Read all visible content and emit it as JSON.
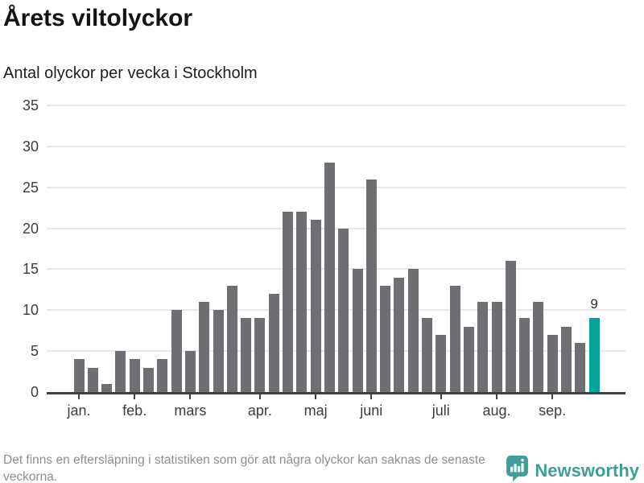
{
  "header": {
    "title": "Årets viltolyckor",
    "subtitle": "Antal olyckor per vecka i Stockholm"
  },
  "footer": {
    "note": "Det finns en eftersläpning i statistiken som gör att några olyckor kan saknas de senaste veckorna.",
    "brand": "Newsworthy"
  },
  "chart_data": {
    "type": "bar",
    "title": "Årets viltolyckor",
    "subtitle": "Antal olyckor per vecka i Stockholm",
    "x_unit": "vecka",
    "values": [
      4,
      3,
      1,
      5,
      4,
      3,
      4,
      10,
      5,
      11,
      10,
      13,
      9,
      9,
      12,
      22,
      22,
      21,
      28,
      20,
      15,
      26,
      13,
      14,
      15,
      9,
      7,
      13,
      8,
      11,
      11,
      16,
      9,
      11,
      7,
      8,
      6,
      9
    ],
    "highlight_last_index": 37,
    "last_value_label": "9",
    "yticks": [
      0,
      5,
      10,
      15,
      20,
      25,
      30,
      35
    ],
    "ylim": [
      0,
      35
    ],
    "grid": true,
    "legend": "none",
    "month_ticks": [
      {
        "label": "jan.",
        "index": 0
      },
      {
        "label": "feb.",
        "index": 4
      },
      {
        "label": "mars",
        "index": 8
      },
      {
        "label": "apr.",
        "index": 13
      },
      {
        "label": "maj",
        "index": 17
      },
      {
        "label": "juni",
        "index": 21
      },
      {
        "label": "juli",
        "index": 26
      },
      {
        "label": "aug.",
        "index": 30
      },
      {
        "label": "sep.",
        "index": 34
      }
    ],
    "colors": {
      "bar": "#6f6e73",
      "highlight": "#00a49b",
      "grid": "#e8e8e8",
      "axis": "#3f3f3f",
      "tick_label": "#3d3d3d",
      "value_label": "#2d2d2d"
    }
  }
}
